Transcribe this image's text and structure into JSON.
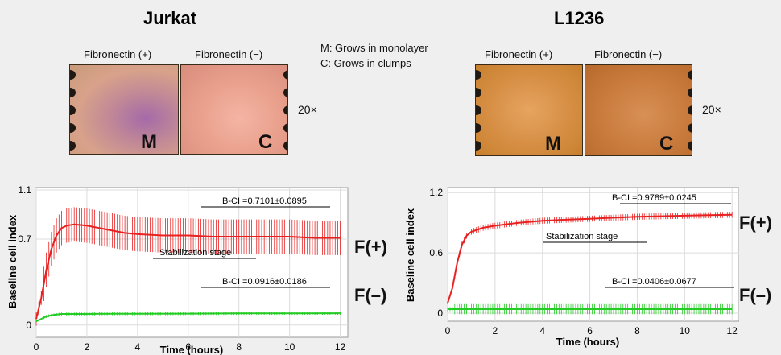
{
  "panels": [
    {
      "title": "Jurkat",
      "images": [
        {
          "label": "Fibronectin (+)",
          "marker": "M"
        },
        {
          "label": "Fibronectin (−)",
          "marker": "C"
        }
      ],
      "magnification": "20×"
    },
    {
      "title": "L1236",
      "images": [
        {
          "label": "Fibronectin (+)",
          "marker": "M"
        },
        {
          "label": "Fibronectin (−)",
          "marker": "C"
        }
      ],
      "magnification": "20×"
    }
  ],
  "legend_notes": [
    "M: Grows in monolayer",
    "C: Grows in clumps"
  ],
  "chart_data": [
    {
      "type": "line",
      "xlabel": "Time (hours)",
      "ylabel": "Baseline cell index",
      "xlim": [
        0,
        12.3
      ],
      "ylim": [
        -0.1,
        1.12
      ],
      "xticks": [
        0,
        2,
        4,
        6,
        8,
        10,
        12
      ],
      "yticks": [
        0,
        0.7,
        1.1
      ],
      "ytick_labels": [
        "0",
        "0.7",
        "1.1"
      ],
      "grid": true,
      "series": [
        {
          "name": "F(+)",
          "color": "#e82020",
          "x": [
            0,
            0.2,
            0.4,
            0.6,
            0.8,
            1.0,
            1.2,
            1.5,
            2,
            2.5,
            3,
            3.5,
            4,
            5,
            6,
            7,
            8,
            9,
            10,
            11,
            12
          ],
          "y": [
            0.05,
            0.22,
            0.45,
            0.62,
            0.73,
            0.79,
            0.81,
            0.82,
            0.81,
            0.79,
            0.77,
            0.75,
            0.74,
            0.73,
            0.73,
            0.72,
            0.72,
            0.72,
            0.72,
            0.71,
            0.71
          ],
          "err": 0.14
        },
        {
          "name": "F(−)",
          "color": "#22cc22",
          "x": [
            0,
            0.2,
            0.4,
            0.6,
            0.8,
            1.0,
            1.5,
            2,
            3,
            4,
            6,
            8,
            10,
            12
          ],
          "y": [
            0.03,
            0.05,
            0.07,
            0.08,
            0.085,
            0.09,
            0.09,
            0.09,
            0.092,
            0.092,
            0.093,
            0.095,
            0.095,
            0.096
          ],
          "err": 0.012
        }
      ],
      "annotations": [
        {
          "text": "B-CI =0.7101±0.0895"
        },
        {
          "text": "Stabilization stage"
        },
        {
          "text": "B-CI =0.0916±0.0186"
        }
      ],
      "series_labels": [
        "F(+)",
        "F(–)"
      ]
    },
    {
      "type": "line",
      "xlabel": "Time (hours)",
      "ylabel": "Baseline cell index",
      "xlim": [
        0,
        12.3
      ],
      "ylim": [
        -0.08,
        1.25
      ],
      "xticks": [
        0,
        2,
        4,
        6,
        8,
        10,
        12
      ],
      "yticks": [
        0,
        0.6,
        1.2
      ],
      "ytick_labels": [
        "0",
        "0.6",
        "1.2"
      ],
      "grid": true,
      "series": [
        {
          "name": "F(+)",
          "color": "#e82020",
          "x": [
            0,
            0.2,
            0.4,
            0.6,
            0.8,
            1.0,
            1.5,
            2,
            3,
            4,
            5,
            6,
            7,
            8,
            9,
            10,
            11,
            12
          ],
          "y": [
            0.1,
            0.25,
            0.5,
            0.68,
            0.77,
            0.81,
            0.85,
            0.87,
            0.9,
            0.92,
            0.93,
            0.94,
            0.95,
            0.96,
            0.965,
            0.97,
            0.975,
            0.98
          ],
          "err": 0.03
        },
        {
          "name": "F(−)",
          "color": "#22cc22",
          "x": [
            0,
            0.5,
            1,
            2,
            4,
            6,
            8,
            10,
            12
          ],
          "y": [
            0.04,
            0.04,
            0.04,
            0.04,
            0.04,
            0.04,
            0.04,
            0.04,
            0.04
          ],
          "err": 0.05
        }
      ],
      "annotations": [
        {
          "text": "B-CI =0.9789±0.0245"
        },
        {
          "text": "Stabilization stage"
        },
        {
          "text": "B-CI =0.0406±0.0677"
        }
      ],
      "series_labels": [
        "F(+)",
        "F(–)"
      ]
    }
  ]
}
